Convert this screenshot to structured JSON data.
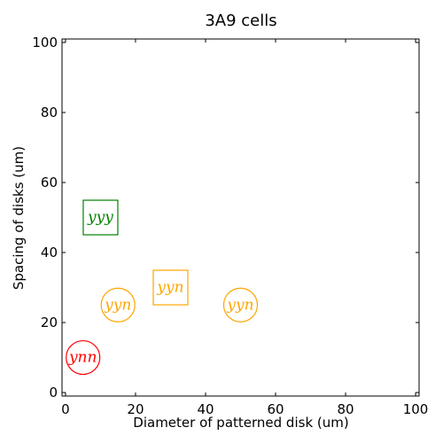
{
  "chart_data": {
    "type": "scatter",
    "title": "3A9 cells",
    "xlabel": "Diameter of patterned disk (um)",
    "ylabel": "Spacing of disks (um)",
    "xlim": [
      -1,
      101
    ],
    "ylim": [
      -1,
      101
    ],
    "xticks": [
      0,
      20,
      40,
      60,
      80,
      100
    ],
    "yticks": [
      0,
      20,
      40,
      60,
      80,
      100
    ],
    "grid": false,
    "points": [
      {
        "x": 5,
        "y": 10,
        "label": "ynn",
        "marker": "circle",
        "color": "#ff0000"
      },
      {
        "x": 15,
        "y": 25,
        "label": "yyn",
        "marker": "circle",
        "color": "#ffa500"
      },
      {
        "x": 50,
        "y": 25,
        "label": "yyn",
        "marker": "circle",
        "color": "#ffa500"
      },
      {
        "x": 30,
        "y": 30,
        "label": "yyn",
        "marker": "square",
        "color": "#ffa500"
      },
      {
        "x": 10,
        "y": 50,
        "label": "yyy",
        "marker": "square",
        "color": "#008000"
      }
    ]
  }
}
